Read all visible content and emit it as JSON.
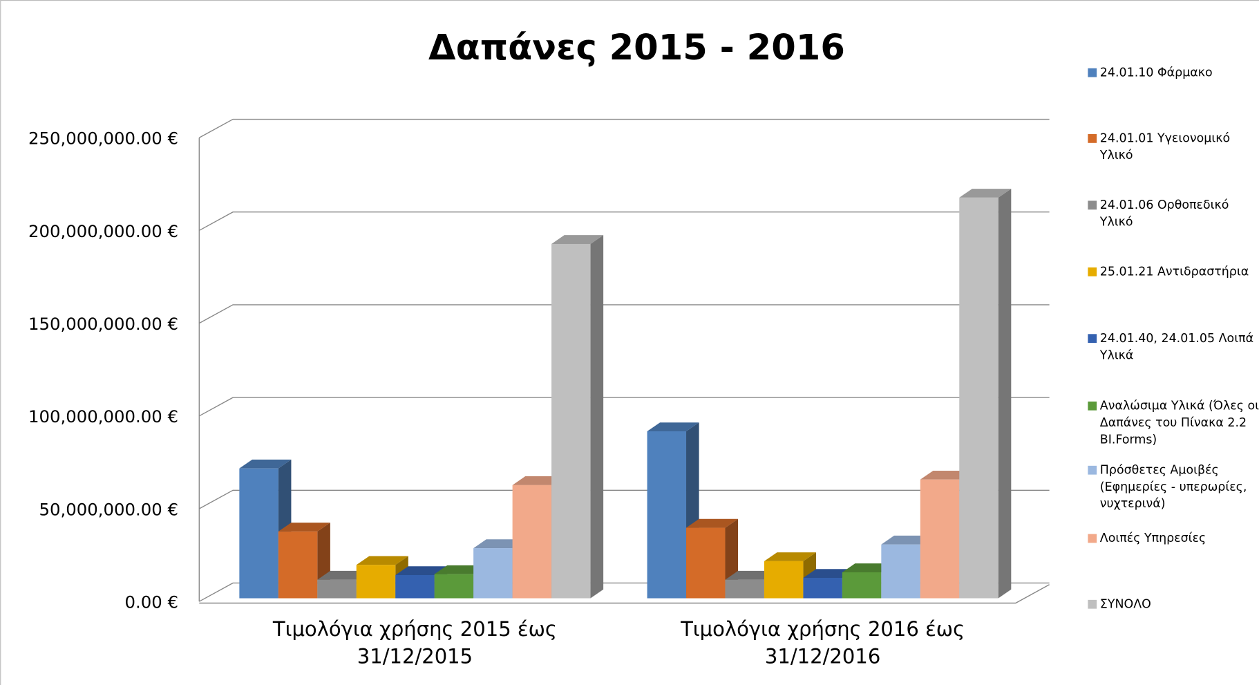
{
  "chart_data": {
    "type": "bar",
    "title": "Δαπάνες 2015 - 2016",
    "categories": [
      "Τιμολόγια χρήσης 2015 έως 31/12/2015",
      "Τιμολόγια χρήσης 2016 έως 31/12/2016"
    ],
    "series": [
      {
        "name": "24.01.10 Φάρμακο",
        "color": "#4f81bd",
        "values": [
          70000000,
          90000000
        ]
      },
      {
        "name": "24.01.01 Υγειονομικό Υλικό",
        "color": "#d46b28",
        "values": [
          36000000,
          38000000
        ]
      },
      {
        "name": "24.01.06 Ορθοπεδικό Υλικό",
        "color": "#8c8c8c",
        "values": [
          10000000,
          10000000
        ]
      },
      {
        "name": "25.01.21 Αντιδραστήρια",
        "color": "#e6ac00",
        "values": [
          18000000,
          20000000
        ]
      },
      {
        "name": "24.01.40, 24.01.05 Λοιπά Υλικά",
        "color": "#3461b0",
        "values": [
          12500000,
          11000000
        ]
      },
      {
        "name": "Αναλώσιμα Υλικά (Όλες οι Δαπάνες του Πίνακα 2.2 BI.Forms)",
        "color": "#5b9a3a",
        "values": [
          13000000,
          14000000
        ]
      },
      {
        "name": "Πρόσθετες Αμοιβές (Εφημερίες - υπερωρίες, νυχτερινά)",
        "color": "#9bb8e0",
        "values": [
          27000000,
          29000000
        ]
      },
      {
        "name": "Λοιπές Υπηρεσίες",
        "color": "#f2a98a",
        "values": [
          61000000,
          64000000
        ]
      },
      {
        "name": "ΣΥΝΟΛΟ",
        "color": "#bfbfbf",
        "values": [
          191000000,
          216000000
        ]
      }
    ],
    "ylim": [
      0,
      250000000
    ],
    "yticks": [
      {
        "value": 0,
        "label": "0.00 €"
      },
      {
        "value": 50000000,
        "label": "50,000,000.00 €"
      },
      {
        "value": 100000000,
        "label": "100,000,000.00 €"
      },
      {
        "value": 150000000,
        "label": "150,000,000.00 €"
      },
      {
        "value": 200000000,
        "label": "200,000,000.00 €"
      },
      {
        "value": 250000000,
        "label": "250,000,000.00 €"
      }
    ],
    "grid": true,
    "legend": "right"
  }
}
